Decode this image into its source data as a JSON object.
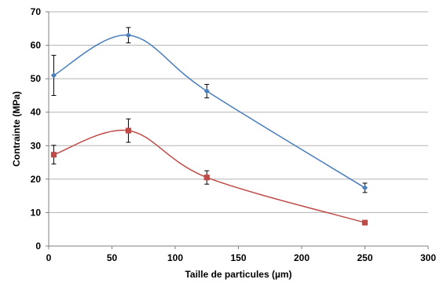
{
  "chart_data": {
    "type": "scatter",
    "xlabel": "Taille de particules (µm)",
    "ylabel": "Contrainte (MPa)",
    "xlim": [
      0,
      300
    ],
    "ylim": [
      0,
      70
    ],
    "xticks": [
      "0",
      "50",
      "100",
      "150",
      "200",
      "250",
      "300"
    ],
    "yticks": [
      "0",
      "10",
      "20",
      "30",
      "40",
      "50",
      "60",
      "70"
    ],
    "grid": "horizontal",
    "legend": "none",
    "smooth": true,
    "series": [
      {
        "color": "#4a7ebb",
        "marker": "diamond",
        "points": [
          {
            "x": 4,
            "y": 51,
            "err": 6
          },
          {
            "x": 63,
            "y": 63,
            "err": 2.3
          },
          {
            "x": 125,
            "y": 46.3,
            "err": 2
          },
          {
            "x": 250,
            "y": 17.4,
            "err": 1.4
          }
        ]
      },
      {
        "color": "#be4b48",
        "marker": "square",
        "points": [
          {
            "x": 4,
            "y": 27.3,
            "err": 2.8
          },
          {
            "x": 63,
            "y": 34.5,
            "err": 3.5
          },
          {
            "x": 125,
            "y": 20.5,
            "err": 2
          },
          {
            "x": 250,
            "y": 7,
            "err": 0
          }
        ]
      }
    ]
  }
}
